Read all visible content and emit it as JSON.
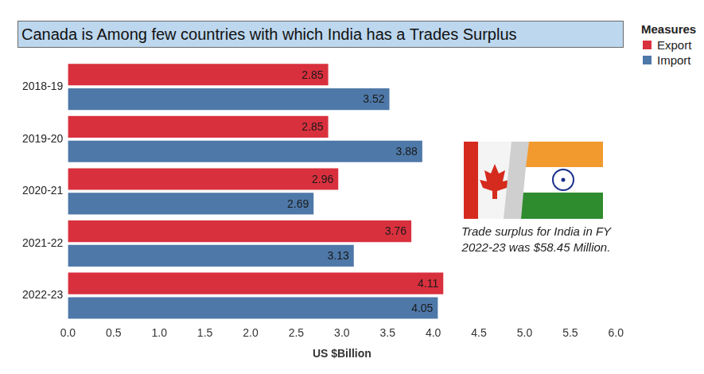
{
  "chart_data": {
    "type": "bar",
    "orientation": "horizontal",
    "title": "Canada is Among few countries with which India has a Trades Surplus",
    "x_label": "US $Billion",
    "legend_title": "Measures",
    "legend": "upper right",
    "categories": [
      "2018-19",
      "2019-20",
      "2020-21",
      "2021-22",
      "2022-23"
    ],
    "series": [
      {
        "name": "Export",
        "color": "#d9303e",
        "values": [
          2.85,
          2.85,
          2.96,
          3.76,
          4.11
        ]
      },
      {
        "name": "Import",
        "color": "#4e78a8",
        "values": [
          3.52,
          3.88,
          2.69,
          3.13,
          4.05
        ]
      }
    ],
    "xlim": [
      0,
      6
    ],
    "xticks": [
      {
        "value": 0,
        "label": "0.0"
      },
      0.5,
      {
        "value": 1,
        "label": "1.0"
      },
      1.5,
      {
        "value": 2,
        "label": "2.0"
      },
      2.5,
      {
        "value": 3,
        "label": "3.0"
      },
      3.5,
      {
        "value": 4,
        "label": "4.0"
      },
      4.5,
      {
        "value": 5,
        "label": "5.0"
      },
      5.5,
      {
        "value": 6,
        "label": "6.0"
      }
    ],
    "grid": false,
    "data_labels": true,
    "annotations": [
      {
        "text": "Trade surplus for India in FY 2022-23 was $58.45 Million."
      }
    ]
  }
}
